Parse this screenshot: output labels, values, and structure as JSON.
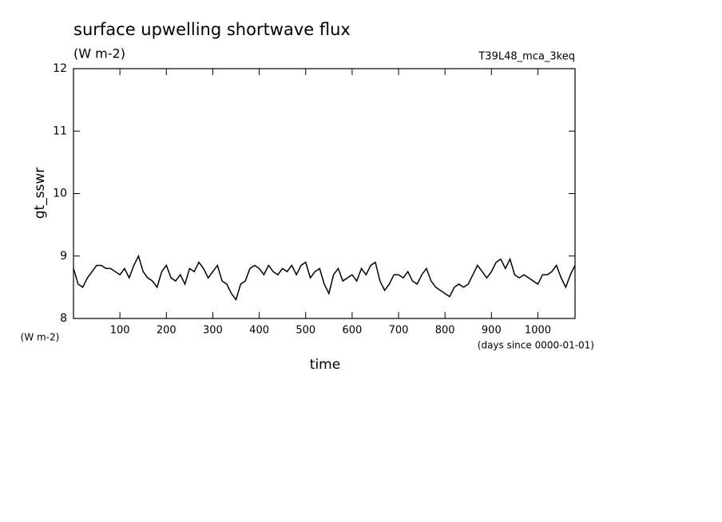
{
  "chart_data": {
    "type": "line",
    "title": "surface upwelling shortwave flux",
    "subtitle": "(W m-2)",
    "annotation": "T39L48_mca_3keq",
    "y_label": "gt_sswr",
    "y_unit": "(W m-2)",
    "x_label": "time",
    "x_unit": "(days since 0000-01-01)",
    "xlim": [
      0,
      1080
    ],
    "ylim": [
      8,
      12
    ],
    "xticks": [
      100,
      200,
      300,
      400,
      500,
      600,
      700,
      800,
      900,
      1000
    ],
    "yticks": [
      8,
      9,
      10,
      11,
      12
    ],
    "x": [
      0,
      10,
      20,
      30,
      40,
      50,
      60,
      70,
      80,
      90,
      100,
      110,
      120,
      130,
      140,
      150,
      160,
      170,
      180,
      190,
      200,
      210,
      220,
      230,
      240,
      250,
      260,
      270,
      280,
      290,
      300,
      310,
      320,
      330,
      340,
      350,
      360,
      370,
      380,
      390,
      400,
      410,
      420,
      430,
      440,
      450,
      460,
      470,
      480,
      490,
      500,
      510,
      520,
      530,
      540,
      550,
      560,
      570,
      580,
      590,
      600,
      610,
      620,
      630,
      640,
      650,
      660,
      670,
      680,
      690,
      700,
      710,
      720,
      730,
      740,
      750,
      760,
      770,
      780,
      790,
      800,
      810,
      820,
      830,
      840,
      850,
      860,
      870,
      880,
      890,
      900,
      910,
      920,
      930,
      940,
      950,
      960,
      970,
      980,
      990,
      1000,
      1010,
      1020,
      1030,
      1040,
      1050,
      1060,
      1070,
      1080
    ],
    "series": [
      {
        "name": "gt_sswr",
        "color": "#000000",
        "values": [
          8.8,
          8.55,
          8.5,
          8.65,
          8.75,
          8.85,
          8.85,
          8.8,
          8.8,
          8.75,
          8.7,
          8.8,
          8.65,
          8.85,
          9.0,
          8.75,
          8.65,
          8.6,
          8.5,
          8.75,
          8.85,
          8.65,
          8.6,
          8.7,
          8.55,
          8.8,
          8.75,
          8.9,
          8.8,
          8.65,
          8.75,
          8.85,
          8.6,
          8.55,
          8.4,
          8.3,
          8.55,
          8.6,
          8.8,
          8.85,
          8.8,
          8.7,
          8.85,
          8.75,
          8.7,
          8.8,
          8.75,
          8.85,
          8.7,
          8.85,
          8.9,
          8.65,
          8.75,
          8.8,
          8.55,
          8.4,
          8.7,
          8.8,
          8.6,
          8.65,
          8.7,
          8.6,
          8.8,
          8.7,
          8.85,
          8.9,
          8.6,
          8.45,
          8.55,
          8.7,
          8.7,
          8.65,
          8.75,
          8.6,
          8.55,
          8.7,
          8.8,
          8.6,
          8.5,
          8.45,
          8.4,
          8.35,
          8.5,
          8.55,
          8.5,
          8.55,
          8.7,
          8.85,
          8.75,
          8.65,
          8.75,
          8.9,
          8.95,
          8.8,
          8.95,
          8.7,
          8.65,
          8.7,
          8.65,
          8.6,
          8.55,
          8.7,
          8.7,
          8.75,
          8.85,
          8.65,
          8.5,
          8.7,
          8.85
        ]
      }
    ]
  }
}
